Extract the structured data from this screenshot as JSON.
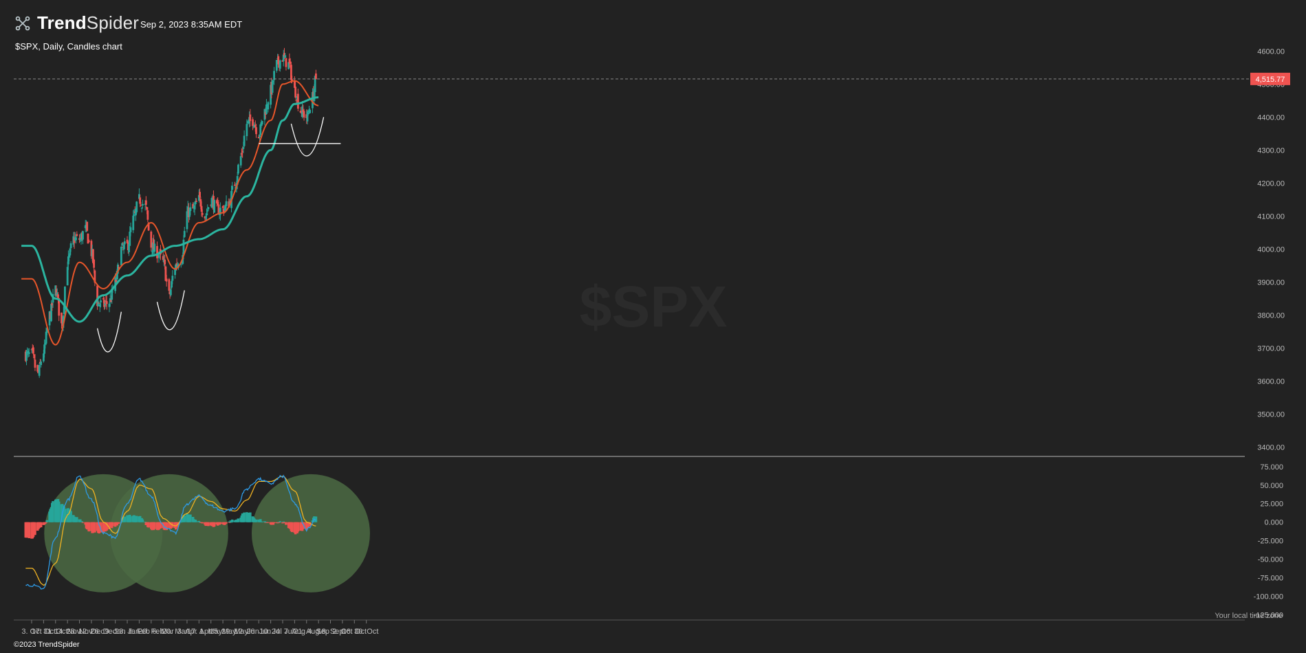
{
  "header": {
    "brand_bold": "Trend",
    "brand_rest": "Spider",
    "timestamp": "Sep 2, 2023 8:35AM EDT",
    "subtitle": "$SPX, Daily, Candles chart"
  },
  "footer": {
    "copyright": "©2023 TrendSpider",
    "timezone_note": "Your local time zone"
  },
  "colors": {
    "background": "#222222",
    "up_candle": "#26a69a",
    "down_candle": "#ef5350",
    "ema_short": "#e8562a",
    "sma_long": "#2bb5a0",
    "macd_line": "#2e9be6",
    "signal_line": "#f0b323",
    "annotation_white": "#ffffff",
    "highlight_circle": "#4b6a43",
    "last_price_tag": "#ef5350"
  },
  "chart_data": [
    {
      "type": "candlestick",
      "title": "$SPX",
      "watermark": "$SPX",
      "x_tick_labels": [
        "3. Oct",
        "17. Oct",
        "31. Oct",
        "14. Nov",
        "28. Nov",
        "12. Dec",
        "26. Dec",
        "9. Jan",
        "23. Jan",
        "6. Feb",
        "20. Feb",
        "6. Mar",
        "20. Mar",
        "3. Apr",
        "17. Apr",
        "1. May",
        "15. May",
        "29. May",
        "12. Jun",
        "26. Jun",
        "10. Jul",
        "24. Jul",
        "7. Aug",
        "21. Aug",
        "4. Sep",
        "18. Sep",
        "2. Oct",
        "16. Oct",
        "30. Oct"
      ],
      "y_ticks": [
        3400,
        3500,
        3600,
        3700,
        3800,
        3900,
        4000,
        4100,
        4200,
        4300,
        4400,
        4500,
        4600
      ],
      "y_tick_labels": [
        "3400.00",
        "3500.00",
        "3600.00",
        "3700.00",
        "3800.00",
        "3900.00",
        "4000.00",
        "4100.00",
        "4200.00",
        "4300.00",
        "4400.00",
        "4500.00",
        "4600.00"
      ],
      "ylim": [
        3380,
        4630
      ],
      "last_price": 4515.77,
      "last_price_label": "4,515.77",
      "close_anchors": [
        [
          "3. Oct",
          3680
        ],
        [
          "10. Oct",
          3620
        ],
        [
          "17. Oct",
          3690
        ],
        [
          "24. Oct",
          3800
        ],
        [
          "31. Oct",
          3880
        ],
        [
          "7. Nov",
          3770
        ],
        [
          "14. Nov",
          3960
        ],
        [
          "21. Nov",
          4030
        ],
        [
          "28. Nov",
          4030
        ],
        [
          "5. Dec",
          4060
        ],
        [
          "12. Dec",
          3990
        ],
        [
          "19. Dec",
          3840
        ],
        [
          "26. Dec",
          3830
        ],
        [
          "2. Jan",
          3840
        ],
        [
          "9. Jan",
          3900
        ],
        [
          "16. Jan",
          4000
        ],
        [
          "23. Jan",
          4010
        ],
        [
          "30. Jan",
          4090
        ],
        [
          "6. Feb",
          4150
        ],
        [
          "13. Feb",
          4130
        ],
        [
          "20. Feb",
          4010
        ],
        [
          "27. Feb",
          3990
        ],
        [
          "6. Mar",
          3960
        ],
        [
          "13. Mar",
          3860
        ],
        [
          "20. Mar",
          3950
        ],
        [
          "27. Mar",
          3970
        ],
        [
          "3. Apr",
          4110
        ],
        [
          "10. Apr",
          4120
        ],
        [
          "17. Apr",
          4150
        ],
        [
          "24. Apr",
          4100
        ],
        [
          "1. May",
          4150
        ],
        [
          "8. May",
          4120
        ],
        [
          "15. May",
          4120
        ],
        [
          "22. May",
          4140
        ],
        [
          "29. May",
          4200
        ],
        [
          "5. Jun",
          4280
        ],
        [
          "12. Jun",
          4380
        ],
        [
          "19. Jun",
          4390
        ],
        [
          "26. Jun",
          4350
        ],
        [
          "3. Jul",
          4420
        ],
        [
          "10. Jul",
          4480
        ],
        [
          "17. Jul",
          4560
        ],
        [
          "24. Jul",
          4580
        ],
        [
          "31. Jul",
          4560
        ],
        [
          "7. Aug",
          4480
        ],
        [
          "14. Aug",
          4420
        ],
        [
          "21. Aug",
          4400
        ],
        [
          "28. Aug",
          4460
        ],
        [
          "1. Sep",
          4515.77
        ]
      ],
      "overlays": [
        {
          "name": "EMA short",
          "color": "#e8562a",
          "values_at_labels": {
            "3. Oct": 3910,
            "31. Oct": 3710,
            "28. Nov": 3960,
            "26. Dec": 3880,
            "23. Jan": 3960,
            "20. Feb": 4080,
            "20. Mar": 3940,
            "17. Apr": 4080,
            "15. May": 4110,
            "12. Jun": 4240,
            "10. Jul": 4390,
            "24. Jul": 4500,
            "7. Aug": 4510,
            "4. Sep": 4435
          }
        },
        {
          "name": "SMA long",
          "color": "#2bb5a0",
          "values_at_labels": {
            "3. Oct": 4010,
            "31. Oct": 3850,
            "28. Nov": 3780,
            "26. Dec": 3860,
            "23. Jan": 3920,
            "20. Feb": 3980,
            "20. Mar": 4010,
            "17. Apr": 4030,
            "15. May": 4060,
            "12. Jun": 4160,
            "10. Jul": 4300,
            "24. Jul": 4390,
            "7. Aug": 4440,
            "4. Sep": 4460
          }
        }
      ],
      "annotations": {
        "support_line": {
          "from": "26. Jun",
          "to": "30. Sep",
          "value": 4320
        },
        "arcs": [
          {
            "from": "19. Dec",
            "to": "16. Jan",
            "start_value": 3760,
            "bottom_value": 3720,
            "end_value": 3810
          },
          {
            "from": "27. Feb",
            "to": "31. Mar",
            "start_value": 3840,
            "bottom_value": 3780,
            "end_value": 3875
          },
          {
            "from": "3. Aug",
            "to": "10. Sep",
            "start_value": 4380,
            "bottom_value": 4300,
            "end_value": 4400
          }
        ]
      }
    },
    {
      "type": "macd",
      "ylim": [
        -130,
        85
      ],
      "y_ticks": [
        75,
        50,
        25,
        0,
        -25,
        -50,
        -75,
        -100,
        -125
      ],
      "y_tick_labels": [
        "75.000",
        "50.000",
        "25.000",
        "0.000",
        "-25.000",
        "-50.000",
        "-75.000",
        "-100.000",
        "-125.000"
      ],
      "macd_anchors": [
        [
          "3. Oct",
          -85
        ],
        [
          "17. Oct",
          -90
        ],
        [
          "31. Oct",
          -20
        ],
        [
          "14. Nov",
          30
        ],
        [
          "28. Nov",
          62
        ],
        [
          "12. Dec",
          30
        ],
        [
          "26. Dec",
          -15
        ],
        [
          "9. Jan",
          -20
        ],
        [
          "23. Jan",
          25
        ],
        [
          "6. Feb",
          58
        ],
        [
          "20. Feb",
          35
        ],
        [
          "6. Mar",
          -5
        ],
        [
          "20. Mar",
          -15
        ],
        [
          "3. Apr",
          25
        ],
        [
          "17. Apr",
          35
        ],
        [
          "1. May",
          22
        ],
        [
          "15. May",
          15
        ],
        [
          "29. May",
          18
        ],
        [
          "12. Jun",
          45
        ],
        [
          "26. Jun",
          58
        ],
        [
          "10. Jul",
          52
        ],
        [
          "24. Jul",
          62
        ],
        [
          "7. Aug",
          25
        ],
        [
          "21. Aug",
          -10
        ],
        [
          "1. Sep",
          5
        ]
      ],
      "signal_anchors": [
        [
          "3. Oct",
          -62
        ],
        [
          "17. Oct",
          -85
        ],
        [
          "31. Oct",
          -55
        ],
        [
          "14. Nov",
          10
        ],
        [
          "28. Nov",
          58
        ],
        [
          "12. Dec",
          45
        ],
        [
          "26. Dec",
          0
        ],
        [
          "9. Jan",
          -15
        ],
        [
          "23. Jan",
          15
        ],
        [
          "6. Feb",
          50
        ],
        [
          "20. Feb",
          45
        ],
        [
          "6. Mar",
          5
        ],
        [
          "20. Mar",
          -5
        ],
        [
          "3. Apr",
          12
        ],
        [
          "17. Apr",
          35
        ],
        [
          "1. May",
          28
        ],
        [
          "15. May",
          18
        ],
        [
          "29. May",
          15
        ],
        [
          "12. Jun",
          30
        ],
        [
          "26. Jun",
          55
        ],
        [
          "10. Jul",
          55
        ],
        [
          "24. Jul",
          62
        ],
        [
          "7. Aug",
          42
        ],
        [
          "21. Aug",
          0
        ],
        [
          "1. Sep",
          -5
        ]
      ],
      "highlight_circles": [
        {
          "center": "26. Dec",
          "value": -15
        },
        {
          "center": "13. Mar",
          "value": -15
        },
        {
          "center": "26. Aug",
          "value": -15
        }
      ]
    }
  ]
}
